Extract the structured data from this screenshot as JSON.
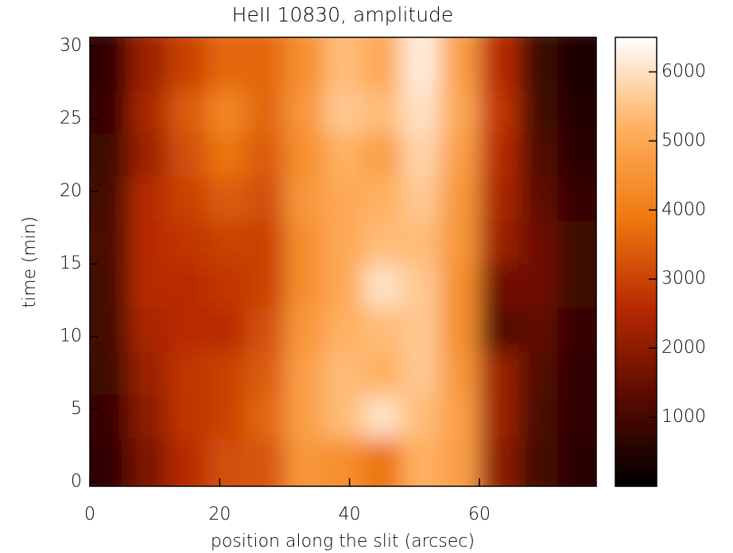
{
  "chart_data": {
    "type": "heatmap",
    "title": "HeII 10830, amplitude",
    "x_label": "position along the slit (arcsec)",
    "y_label": "time (min)",
    "x": [
      3,
      9,
      15,
      21,
      27,
      33,
      39,
      45,
      51,
      57,
      63,
      69,
      75
    ],
    "y": [
      1.5,
      4.5,
      7.5,
      10.5,
      13.5,
      16.5,
      19.5,
      22.5,
      25.5,
      28.5
    ],
    "z": [
      [
        700,
        1800,
        2600,
        3200,
        3300,
        4600,
        4400,
        3800,
        5200,
        4800,
        2000,
        1000,
        600
      ],
      [
        800,
        2000,
        2800,
        3000,
        3600,
        4800,
        5400,
        6000,
        5400,
        4800,
        2200,
        1100,
        700
      ],
      [
        900,
        2200,
        2800,
        3000,
        3400,
        4800,
        5400,
        5200,
        5600,
        4600,
        2200,
        1200,
        700
      ],
      [
        1000,
        2400,
        2600,
        2600,
        3200,
        4600,
        5200,
        5400,
        5600,
        4400,
        1200,
        1400,
        800
      ],
      [
        1000,
        2600,
        2600,
        2800,
        3000,
        4400,
        5000,
        6000,
        5600,
        4400,
        1600,
        1600,
        900
      ],
      [
        1100,
        2600,
        2800,
        3000,
        3000,
        4400,
        5000,
        5400,
        5400,
        4600,
        2200,
        1600,
        900
      ],
      [
        1000,
        2600,
        3000,
        3400,
        3200,
        4600,
        5000,
        5200,
        5600,
        4600,
        2400,
        1400,
        800
      ],
      [
        900,
        2200,
        3200,
        3800,
        3400,
        4400,
        5200,
        4800,
        5800,
        4800,
        2600,
        1200,
        600
      ],
      [
        800,
        2400,
        3400,
        4200,
        3600,
        4600,
        5600,
        5400,
        6000,
        5000,
        2800,
        1000,
        500
      ],
      [
        700,
        2200,
        3000,
        3600,
        3600,
        4400,
        5400,
        5000,
        6200,
        4800,
        2600,
        900,
        400
      ]
    ],
    "xlim": [
      0,
      78
    ],
    "ylim": [
      -0.3,
      30.6
    ],
    "xticks": [
      0,
      20,
      40,
      60
    ],
    "yticks": [
      0,
      5,
      10,
      15,
      20,
      25,
      30
    ],
    "clim": [
      0,
      6500
    ],
    "cticks": [
      1000,
      2000,
      3000,
      4000,
      5000,
      6000
    ],
    "colorscale": [
      "#000000",
      "#5a0a00",
      "#b82a00",
      "#f07a10",
      "#ffb060",
      "#ffffff"
    ]
  }
}
